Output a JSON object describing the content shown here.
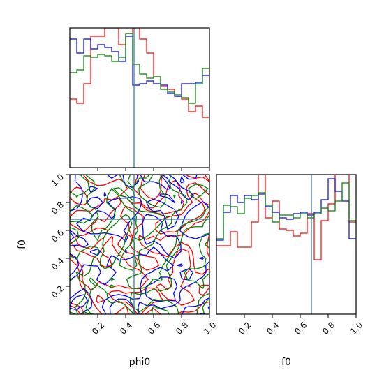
{
  "chart_data": [
    {
      "panel": "phi0-histogram",
      "type": "histogram-step",
      "xlim": [
        0,
        1
      ],
      "x_tick_labels": [],
      "truth_line": {
        "x": 0.46
      },
      "series": [
        {
          "color": "#ff0000",
          "bin_edges": [
            0.0,
            0.05,
            0.1,
            0.15,
            0.2,
            0.25,
            0.3,
            0.35,
            0.4,
            0.45,
            0.5,
            0.55,
            0.6,
            0.65,
            0.7,
            0.75,
            0.8,
            0.85,
            0.9,
            0.95,
            1.0
          ],
          "heights": [
            0.49,
            0.46,
            0.6,
            0.94,
            0.94,
            1.0,
            1.0,
            0.88,
            0.96,
            1.0,
            0.92,
            0.82,
            0.65,
            0.58,
            0.56,
            0.51,
            0.49,
            0.4,
            0.44,
            0.36
          ]
        },
        {
          "color": "#0000ff",
          "bin_edges": [
            0.0,
            0.05,
            0.1,
            0.15,
            0.2,
            0.25,
            0.3,
            0.35,
            0.4,
            0.45,
            0.5,
            0.55,
            0.6,
            0.65,
            0.7,
            0.75,
            0.8,
            0.85,
            0.9,
            0.95,
            1.0
          ],
          "heights": [
            0.92,
            0.82,
            0.92,
            0.85,
            0.88,
            0.86,
            0.83,
            0.76,
            0.94,
            0.59,
            0.6,
            0.62,
            0.6,
            0.59,
            0.53,
            0.51,
            0.6,
            0.6,
            0.61,
            0.66
          ]
        },
        {
          "color": "#008000",
          "bin_edges": [
            0.0,
            0.05,
            0.1,
            0.15,
            0.2,
            0.25,
            0.3,
            0.35,
            0.4,
            0.45,
            0.5,
            0.55,
            0.6,
            0.65,
            0.7,
            0.75,
            0.8,
            0.85,
            0.9,
            0.95,
            1.0
          ],
          "heights": [
            0.68,
            0.7,
            0.8,
            0.79,
            0.81,
            0.8,
            0.76,
            0.79,
            0.96,
            0.74,
            0.67,
            0.64,
            0.65,
            0.56,
            0.54,
            0.52,
            0.5,
            0.46,
            0.6,
            0.71
          ]
        }
      ]
    },
    {
      "panel": "f0-histogram",
      "type": "histogram-step",
      "xlim": [
        0,
        1
      ],
      "x_tick_labels": [
        "0.2",
        "0.4",
        "0.6",
        "0.8",
        "1.0"
      ],
      "xlabel": "f0",
      "truth_line": {
        "x": 0.68
      },
      "series": [
        {
          "color": "#ff0000",
          "bin_edges": [
            0.0,
            0.05,
            0.1,
            0.15,
            0.2,
            0.25,
            0.3,
            0.35,
            0.4,
            0.45,
            0.5,
            0.55,
            0.6,
            0.65,
            0.7,
            0.75,
            0.8,
            0.85,
            0.9,
            0.95,
            1.0
          ],
          "heights": [
            0.49,
            0.49,
            0.59,
            0.48,
            0.48,
            0.66,
            1.0,
            0.69,
            0.81,
            0.61,
            0.6,
            0.56,
            0.58,
            0.72,
            0.39,
            0.67,
            0.79,
            1.0,
            1.0,
            0.66
          ]
        },
        {
          "color": "#0000ff",
          "bin_edges": [
            0.0,
            0.05,
            0.1,
            0.15,
            0.2,
            0.25,
            0.3,
            0.35,
            0.4,
            0.45,
            0.5,
            0.55,
            0.6,
            0.65,
            0.7,
            0.75,
            0.8,
            0.85,
            0.9,
            0.95,
            1.0
          ],
          "heights": [
            0.53,
            0.73,
            0.85,
            0.8,
            0.85,
            0.82,
            0.86,
            0.77,
            0.73,
            0.69,
            0.68,
            0.72,
            0.73,
            0.71,
            0.73,
            0.82,
            0.97,
            0.88,
            0.81,
            0.54
          ]
        },
        {
          "color": "#008000",
          "bin_edges": [
            0.0,
            0.05,
            0.1,
            0.15,
            0.2,
            0.25,
            0.3,
            0.35,
            0.4,
            0.45,
            0.5,
            0.55,
            0.6,
            0.65,
            0.7,
            0.75,
            0.8,
            0.85,
            0.9,
            0.95,
            1.0
          ],
          "heights": [
            0.54,
            0.78,
            0.77,
            0.72,
            0.83,
            0.85,
            0.87,
            0.78,
            0.66,
            0.71,
            0.71,
            0.69,
            0.72,
            0.69,
            0.72,
            0.76,
            0.74,
            0.81,
            0.94,
            0.67
          ]
        }
      ]
    },
    {
      "panel": "phi0-f0-2d",
      "type": "contour",
      "xlim": [
        0,
        1
      ],
      "ylim": [
        0,
        1
      ],
      "xlabel": "phi0",
      "ylabel": "f0",
      "x_tick_labels": [
        "0.2",
        "0.4",
        "0.6",
        "0.8",
        "1.0"
      ],
      "y_tick_labels": [
        "0.2",
        "0.4",
        "0.6",
        "0.8",
        "1.0"
      ],
      "truth_lines": {
        "x": 0.46,
        "y": 0.68
      },
      "truth_point": {
        "x": 0.46,
        "y": 0.68
      },
      "grid": false,
      "series_colors": [
        "#ff0000",
        "#0000ff",
        "#008000"
      ]
    }
  ],
  "style": {
    "truth_color": "#3a7ba6"
  }
}
